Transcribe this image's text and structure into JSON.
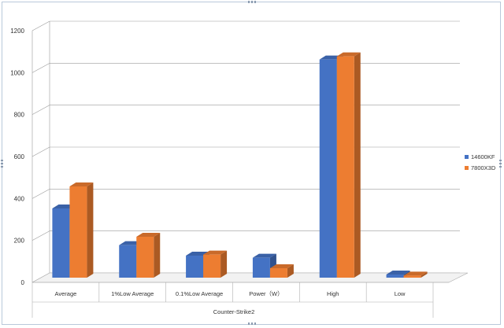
{
  "chart_data": {
    "type": "bar",
    "categories": [
      "Average",
      "1%Low Average",
      "0.1%Low Average",
      "Power（W）",
      "High",
      "Low"
    ],
    "series": [
      {
        "name": "14600KF",
        "values": [
          330,
          155,
          105,
          95,
          1040,
          15
        ],
        "color": "#4472c4"
      },
      {
        "name": "7800X3D",
        "values": [
          435,
          195,
          110,
          45,
          1055,
          10
        ],
        "color": "#ed7d31"
      }
    ],
    "y_ticks": [
      0,
      200,
      400,
      600,
      800,
      1000,
      1200
    ],
    "ylim": [
      0,
      1200
    ],
    "xlabel": "Counter-Strike2",
    "ylabel": "",
    "title": "",
    "grid": true,
    "legend": "right"
  }
}
